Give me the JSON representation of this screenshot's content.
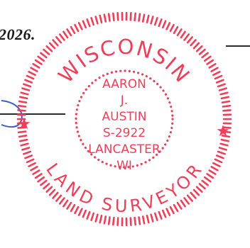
{
  "document": {
    "date_fragment": "2026."
  },
  "seal": {
    "color": "#ee3f5a",
    "top_arc": "WISCONSIN",
    "bottom_arc": "LAND SURVEYOR",
    "lines": [
      "AARON",
      "J.",
      "AUSTIN",
      "S-2922",
      "LANCASTER",
      "WI"
    ],
    "star_glyph": "★"
  },
  "signature": {
    "color": "#3a5fcf"
  }
}
